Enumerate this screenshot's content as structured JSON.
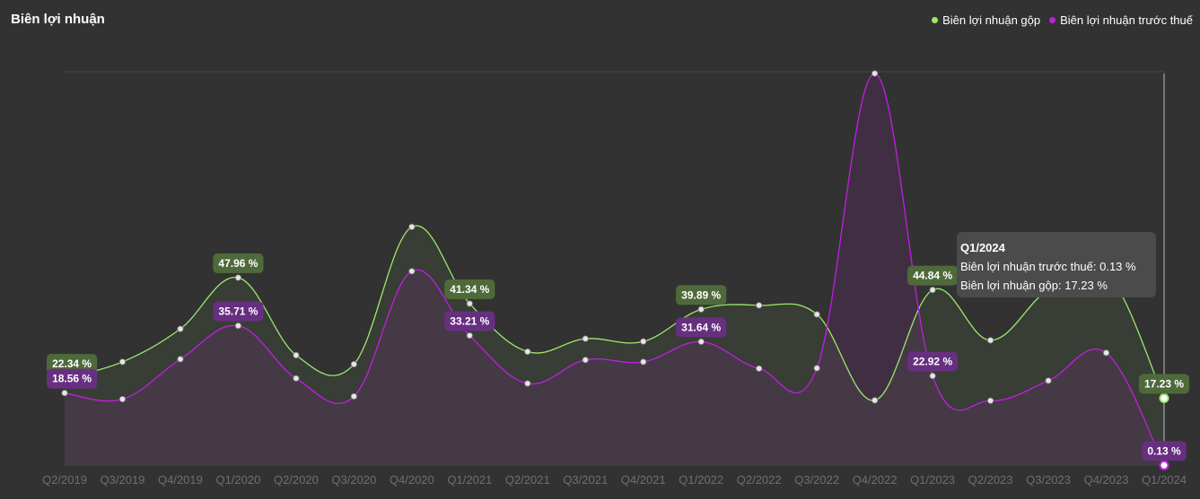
{
  "header": {
    "title": "Biên lợi nhuận"
  },
  "legend": [
    {
      "label": "Biên lợi nhuận gộp",
      "color": "#9be86a"
    },
    {
      "label": "Biên lợi nhuận trước thuế",
      "color": "#c21ee0"
    }
  ],
  "tooltip": {
    "title": "Q1/2024",
    "line1": "Biên lợi nhuận trước thuế: 0.13 %",
    "line2": "Biên lợi nhuận gộp: 17.23 %"
  },
  "chart_data": {
    "type": "line",
    "title": "Biên lợi nhuận",
    "categories": [
      "Q2/2019",
      "Q3/2019",
      "Q4/2019",
      "Q1/2020",
      "Q2/2020",
      "Q3/2020",
      "Q4/2020",
      "Q1/2021",
      "Q2/2021",
      "Q3/2021",
      "Q4/2021",
      "Q1/2022",
      "Q2/2022",
      "Q3/2022",
      "Q4/2022",
      "Q1/2023",
      "Q2/2023",
      "Q3/2023",
      "Q4/2023",
      "Q1/2024"
    ],
    "series": [
      {
        "name": "Biên lợi nhuận gộp",
        "color": "#9be86a",
        "label_bg": "#4e6a3a",
        "values": [
          22.34,
          26.5,
          34.9,
          47.96,
          28.2,
          25.9,
          60.9,
          41.34,
          29.1,
          32.4,
          31.7,
          39.89,
          40.9,
          38.6,
          16.7,
          44.84,
          32.0,
          44.9,
          49.5,
          17.23
        ],
        "labeled": [
          0,
          3,
          7,
          11,
          15,
          19
        ]
      },
      {
        "name": "Biên lợi nhuận trước thuế",
        "color": "#c21ee0",
        "label_bg": "#672f80",
        "values": [
          18.56,
          17.0,
          27.2,
          35.71,
          22.3,
          17.7,
          49.6,
          33.21,
          21.0,
          27.0,
          26.5,
          31.64,
          24.8,
          24.9,
          100.0,
          22.92,
          16.6,
          21.7,
          28.8,
          0.13
        ],
        "labeled": [
          0,
          3,
          7,
          11,
          15,
          19
        ]
      }
    ],
    "ylim": [
      0,
      100
    ],
    "grid": false,
    "legend_position": "top-right"
  }
}
